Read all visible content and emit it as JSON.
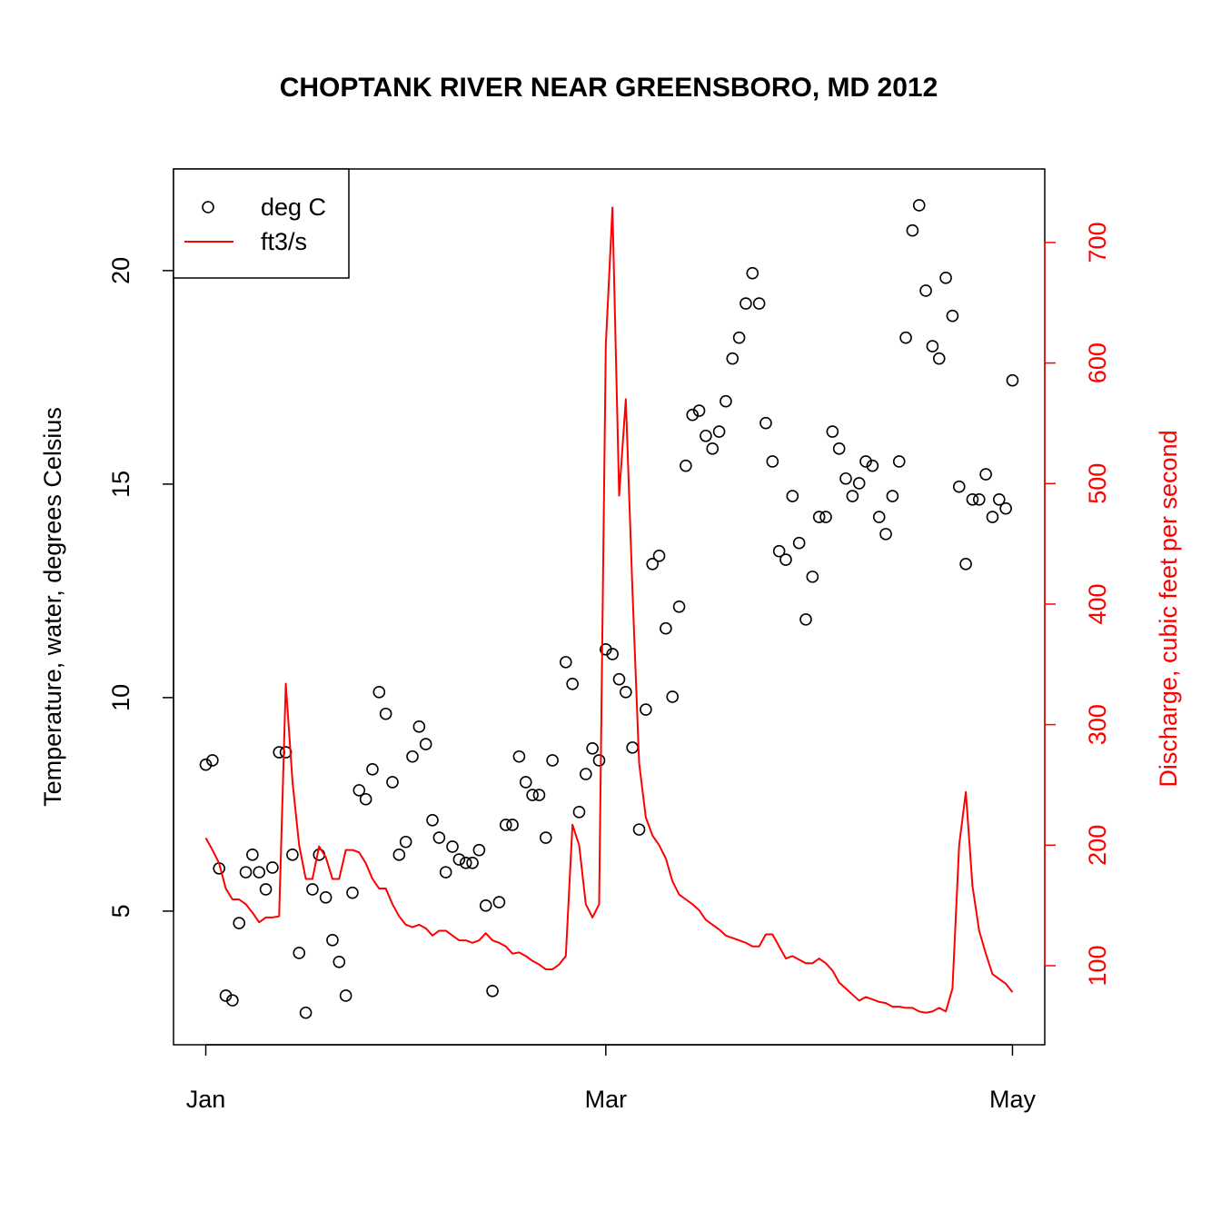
{
  "chart_data": {
    "type": "scatter",
    "title": "CHOPTANK RIVER NEAR GREENSBORO, MD 2012",
    "ylabel": "Temperature, water, degrees Celsius",
    "y2label": "Discharge, cubic feet per second",
    "x": [
      0,
      1,
      2,
      3,
      4,
      5,
      6,
      7,
      8,
      9,
      10,
      11,
      12,
      13,
      14,
      15,
      16,
      17,
      18,
      19,
      20,
      21,
      22,
      23,
      24,
      25,
      26,
      27,
      28,
      29,
      30,
      31,
      32,
      33,
      34,
      35,
      36,
      37,
      38,
      39,
      40,
      41,
      42,
      43,
      44,
      45,
      46,
      47,
      48,
      49,
      50,
      51,
      52,
      53,
      54,
      55,
      56,
      57,
      58,
      59,
      60,
      61,
      62,
      63,
      64,
      65,
      66,
      67,
      68,
      69,
      70,
      71,
      72,
      73,
      74,
      75,
      76,
      77,
      78,
      79,
      80,
      81,
      82,
      83,
      84,
      85,
      86,
      87,
      88,
      89,
      90,
      91,
      92,
      93,
      94,
      95,
      96,
      97,
      98,
      99,
      100,
      101,
      102,
      103,
      104,
      105,
      106,
      107,
      108,
      109,
      110,
      111,
      112,
      113,
      114,
      115,
      116,
      117,
      118,
      119,
      120,
      121
    ],
    "xlim": [
      -4.84,
      125.84
    ],
    "xticks": [
      {
        "value": 0,
        "label": "Jan"
      },
      {
        "value": 60,
        "label": "Mar"
      },
      {
        "value": 121,
        "label": "May"
      }
    ],
    "ylim": [
      1.87,
      22.38
    ],
    "yticks": [
      5,
      10,
      15,
      20
    ],
    "y2lim": [
      34.4,
      761
    ],
    "y2ticks": [
      100,
      200,
      300,
      400,
      500,
      600,
      700
    ],
    "legend": "top-left",
    "series": [
      {
        "name": "deg C",
        "type": "scatter",
        "color": "#000000",
        "values": [
          8.43,
          8.53,
          6.0,
          3.02,
          2.91,
          4.72,
          5.91,
          6.32,
          5.91,
          5.51,
          6.02,
          8.72,
          8.72,
          6.32,
          4.02,
          2.62,
          5.51,
          6.32,
          5.32,
          4.32,
          3.81,
          3.02,
          5.43,
          7.83,
          7.62,
          8.32,
          10.13,
          9.62,
          8.02,
          6.32,
          6.62,
          8.62,
          9.32,
          8.91,
          7.13,
          6.72,
          5.91,
          6.51,
          6.21,
          6.13,
          6.13,
          6.43,
          5.13,
          3.13,
          5.21,
          7.02,
          7.02,
          8.62,
          8.02,
          7.72,
          7.72,
          6.72,
          8.53,
          null,
          10.83,
          10.32,
          7.32,
          8.21,
          8.81,
          8.53,
          11.13,
          11.02,
          10.43,
          10.13,
          8.83,
          6.91,
          9.72,
          13.13,
          13.32,
          11.62,
          10.02,
          12.13,
          15.43,
          16.62,
          16.72,
          16.13,
          15.83,
          16.23,
          16.94,
          17.94,
          18.43,
          19.23,
          19.94,
          19.23,
          16.43,
          15.53,
          13.43,
          13.23,
          14.72,
          13.62,
          11.83,
          12.83,
          14.23,
          14.23,
          16.23,
          15.83,
          15.13,
          14.72,
          15.02,
          15.53,
          15.43,
          14.23,
          13.83,
          14.72,
          15.53,
          18.43,
          20.94,
          21.53,
          19.53,
          18.23,
          17.94,
          19.83,
          18.94,
          14.94,
          13.13,
          14.64,
          14.64,
          15.23,
          14.23,
          14.64,
          14.43,
          17.43
        ]
      },
      {
        "name": "ft3/s",
        "type": "line",
        "axis": "y2",
        "color": "#ff0000",
        "values": [
          206,
          196,
          185,
          164,
          155,
          155,
          151,
          144,
          136,
          140,
          140,
          141,
          334,
          253,
          200,
          172,
          172,
          199,
          190,
          172,
          172,
          196,
          196,
          194,
          185,
          172,
          164,
          164,
          151,
          141,
          134,
          132,
          134,
          131,
          125,
          129,
          129,
          125,
          121,
          121,
          119,
          121,
          127,
          121,
          119,
          116,
          110,
          111,
          108,
          104,
          101,
          97,
          97,
          101,
          108,
          217,
          200,
          151,
          140,
          151,
          615,
          729,
          490,
          570,
          411,
          268,
          223,
          208,
          200,
          189,
          170,
          159,
          155,
          151,
          146,
          138,
          134,
          130,
          125,
          123,
          121,
          119,
          116,
          116,
          126,
          126,
          116,
          106,
          108,
          105,
          102,
          102,
          106,
          102,
          96,
          86,
          81,
          76,
          71,
          74,
          72,
          70,
          69,
          66,
          66,
          65,
          65,
          62,
          61,
          62,
          65,
          62,
          81,
          200,
          244,
          166,
          129,
          110,
          93,
          89,
          85,
          78
        ]
      }
    ]
  }
}
